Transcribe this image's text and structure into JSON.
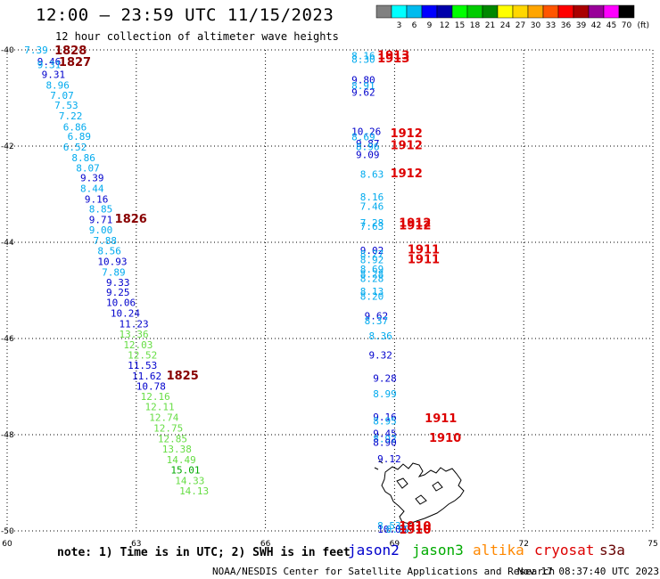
{
  "title": "12:00 – 23:59 UTC 11/15/2023",
  "subtitle": "12 hour collection of altimeter wave heights",
  "note": "note: 1) Time is in UTC; 2) SWH is in feet",
  "satellites": [
    {
      "name": "jason2",
      "color": "#0000cc"
    },
    {
      "name": "jason3",
      "color": "#00aa00"
    },
    {
      "name": "altika",
      "color": "#ff8800"
    },
    {
      "name": "cryosat",
      "color": "#dd0000"
    },
    {
      "name": "s3a",
      "color": "#660000"
    }
  ],
  "credit": "NOAA/NESDIS Center for Satellite Applications and Research",
  "generated": "Nov 17 08:37:40 UTC 2023",
  "chart_data": {
    "type": "scatter",
    "title": "12:00 – 23:59 UTC 11/15/2023",
    "subtitle": "12 hour collection of altimeter wave heights",
    "units": "ft",
    "xlim": [
      60,
      75
    ],
    "ylim": [
      -50,
      -40
    ],
    "x_ticks": [
      60,
      63,
      66,
      69,
      72,
      75
    ],
    "y_ticks": [
      -40,
      -42,
      -44,
      -46,
      -48,
      -50
    ],
    "grid": true,
    "colorbar": {
      "levels": [
        "",
        "3",
        "6",
        "9",
        "12",
        "15",
        "18",
        "21",
        "24",
        "27",
        "30",
        "33",
        "36",
        "39",
        "42",
        "45",
        "70"
      ],
      "colors": [
        "#808080",
        "#00ffff",
        "#00bbee",
        "#0000ff",
        "#0000aa",
        "#00ff00",
        "#00cc00",
        "#008800",
        "#ffff00",
        "#ffd700",
        "#ffa500",
        "#ff5500",
        "#ff0000",
        "#aa0000",
        "#990099",
        "#ff00ff",
        "#000000"
      ],
      "unit_label": "(ft)"
    },
    "track_west": [
      {
        "lon": 60.4,
        "lat": -40.0,
        "v": "7.39",
        "c": "#00aaee"
      },
      {
        "lon": 60.7,
        "lat": -40.24,
        "v": "9.46",
        "c": "#0000cc"
      },
      {
        "lon": 60.7,
        "lat": -40.31,
        "v": "9.31",
        "c": "#00aaee"
      },
      {
        "lon": 60.8,
        "lat": -40.51,
        "v": "9.31",
        "c": "#0000cc"
      },
      {
        "lon": 60.9,
        "lat": -40.73,
        "v": "8.96",
        "c": "#00aaee"
      },
      {
        "lon": 61.0,
        "lat": -40.94,
        "v": "7.07",
        "c": "#00aaee"
      },
      {
        "lon": 61.1,
        "lat": -41.15,
        "v": "7.53",
        "c": "#00aaee"
      },
      {
        "lon": 61.2,
        "lat": -41.37,
        "v": "7.22",
        "c": "#00aaee"
      },
      {
        "lon": 61.3,
        "lat": -41.6,
        "v": "6.86",
        "c": "#00aaee"
      },
      {
        "lon": 61.4,
        "lat": -41.8,
        "v": "6.89",
        "c": "#00aaee"
      },
      {
        "lon": 61.3,
        "lat": -42.02,
        "v": "6.52",
        "c": "#00aaee"
      },
      {
        "lon": 61.5,
        "lat": -42.24,
        "v": "8.86",
        "c": "#00aaee"
      },
      {
        "lon": 61.6,
        "lat": -42.45,
        "v": "8.07",
        "c": "#00aaee"
      },
      {
        "lon": 61.7,
        "lat": -42.66,
        "v": "9.39",
        "c": "#0000cc"
      },
      {
        "lon": 61.7,
        "lat": -42.88,
        "v": "8.44",
        "c": "#00aaee"
      },
      {
        "lon": 61.8,
        "lat": -43.1,
        "v": "9.16",
        "c": "#0000cc"
      },
      {
        "lon": 61.9,
        "lat": -43.31,
        "v": "8.85",
        "c": "#00aaee"
      },
      {
        "lon": 61.9,
        "lat": -43.53,
        "v": "9.71",
        "c": "#0000cc"
      },
      {
        "lon": 61.9,
        "lat": -43.74,
        "v": "9.00",
        "c": "#00aaee"
      },
      {
        "lon": 62.0,
        "lat": -43.96,
        "v": "7.88",
        "c": "#00aaee"
      },
      {
        "lon": 62.1,
        "lat": -44.18,
        "v": "8.56",
        "c": "#00aaee"
      },
      {
        "lon": 62.1,
        "lat": -44.4,
        "v": "10.93",
        "c": "#0000cc"
      },
      {
        "lon": 62.2,
        "lat": -44.62,
        "v": "7.89",
        "c": "#00aaee"
      },
      {
        "lon": 62.3,
        "lat": -44.83,
        "v": "9.33",
        "c": "#0000cc"
      },
      {
        "lon": 62.3,
        "lat": -45.04,
        "v": "9.25",
        "c": "#0000cc"
      },
      {
        "lon": 62.3,
        "lat": -45.25,
        "v": "10.06",
        "c": "#0000cc"
      },
      {
        "lon": 62.4,
        "lat": -45.47,
        "v": "10.24",
        "c": "#0000cc"
      },
      {
        "lon": 62.6,
        "lat": -45.69,
        "v": "11.23",
        "c": "#0000cc"
      },
      {
        "lon": 62.6,
        "lat": -45.91,
        "v": "13.36",
        "c": "#66dd44"
      },
      {
        "lon": 62.7,
        "lat": -46.13,
        "v": "12.03",
        "c": "#66dd44"
      },
      {
        "lon": 62.8,
        "lat": -46.34,
        "v": "12.52",
        "c": "#66dd44"
      },
      {
        "lon": 62.8,
        "lat": -46.56,
        "v": "11.53",
        "c": "#0000cc"
      },
      {
        "lon": 62.9,
        "lat": -46.78,
        "v": "11.62",
        "c": "#0000cc"
      },
      {
        "lon": 63.0,
        "lat": -46.99,
        "v": "10.78",
        "c": "#0000cc"
      },
      {
        "lon": 63.1,
        "lat": -47.2,
        "v": "12.16",
        "c": "#66dd44"
      },
      {
        "lon": 63.2,
        "lat": -47.42,
        "v": "12.11",
        "c": "#66dd44"
      },
      {
        "lon": 63.3,
        "lat": -47.64,
        "v": "12.74",
        "c": "#66dd44"
      },
      {
        "lon": 63.4,
        "lat": -47.86,
        "v": "12.75",
        "c": "#66dd44"
      },
      {
        "lon": 63.5,
        "lat": -48.08,
        "v": "12.85",
        "c": "#66dd44"
      },
      {
        "lon": 63.6,
        "lat": -48.3,
        "v": "13.38",
        "c": "#66dd44"
      },
      {
        "lon": 63.7,
        "lat": -48.52,
        "v": "14.49",
        "c": "#66dd44"
      },
      {
        "lon": 63.8,
        "lat": -48.73,
        "v": "15.01",
        "c": "#00aa00"
      },
      {
        "lon": 63.9,
        "lat": -48.95,
        "v": "14.33",
        "c": "#66dd44"
      },
      {
        "lon": 64.0,
        "lat": -49.17,
        "v": "14.13",
        "c": "#66dd44"
      }
    ],
    "track_east": [
      {
        "lon": 68.0,
        "lat": -40.12,
        "v": "8.16",
        "c": "#00aaee"
      },
      {
        "lon": 68.0,
        "lat": -40.19,
        "v": "8.30",
        "c": "#00aaee"
      },
      {
        "lon": 68.0,
        "lat": -40.62,
        "v": "9.80",
        "c": "#0000cc"
      },
      {
        "lon": 68.0,
        "lat": -40.74,
        "v": "8.91",
        "c": "#00aaee"
      },
      {
        "lon": 68.0,
        "lat": -40.88,
        "v": "9.62",
        "c": "#0000cc"
      },
      {
        "lon": 68.0,
        "lat": -41.69,
        "v": "10.26",
        "c": "#0000cc"
      },
      {
        "lon": 68.0,
        "lat": -41.81,
        "v": "8.69",
        "c": "#00aaee"
      },
      {
        "lon": 68.1,
        "lat": -41.94,
        "v": "9.87",
        "c": "#0000cc"
      },
      {
        "lon": 68.1,
        "lat": -42.01,
        "v": "8.96",
        "c": "#00aaee"
      },
      {
        "lon": 68.1,
        "lat": -42.18,
        "v": "9.09",
        "c": "#0000cc"
      },
      {
        "lon": 68.2,
        "lat": -42.58,
        "v": "8.63",
        "c": "#00aaee"
      },
      {
        "lon": 68.2,
        "lat": -43.06,
        "v": "8.16",
        "c": "#00aaee"
      },
      {
        "lon": 68.2,
        "lat": -43.25,
        "v": "7.46",
        "c": "#00aaee"
      },
      {
        "lon": 68.2,
        "lat": -43.59,
        "v": "7.28",
        "c": "#00aaee"
      },
      {
        "lon": 68.2,
        "lat": -43.67,
        "v": "7.63",
        "c": "#00aaee"
      },
      {
        "lon": 68.2,
        "lat": -44.17,
        "v": "9.02",
        "c": "#0000cc"
      },
      {
        "lon": 68.2,
        "lat": -44.24,
        "v": "8.27",
        "c": "#00aaee"
      },
      {
        "lon": 68.2,
        "lat": -44.36,
        "v": "8.92",
        "c": "#00aaee"
      },
      {
        "lon": 68.2,
        "lat": -44.56,
        "v": "8.69",
        "c": "#00aaee"
      },
      {
        "lon": 68.2,
        "lat": -44.66,
        "v": "8.28",
        "c": "#00aaee"
      },
      {
        "lon": 68.2,
        "lat": -44.75,
        "v": "8.28",
        "c": "#00aaee"
      },
      {
        "lon": 68.2,
        "lat": -45.02,
        "v": "8.13",
        "c": "#00aaee"
      },
      {
        "lon": 68.2,
        "lat": -45.12,
        "v": "8.20",
        "c": "#00aaee"
      },
      {
        "lon": 68.3,
        "lat": -45.53,
        "v": "9.62",
        "c": "#0000cc"
      },
      {
        "lon": 68.3,
        "lat": -45.63,
        "v": "8.37",
        "c": "#00aaee"
      },
      {
        "lon": 68.4,
        "lat": -45.94,
        "v": "8.36",
        "c": "#00aaee"
      },
      {
        "lon": 68.4,
        "lat": -46.34,
        "v": "9.32",
        "c": "#0000cc"
      },
      {
        "lon": 68.5,
        "lat": -46.82,
        "v": "9.28",
        "c": "#0000cc"
      },
      {
        "lon": 68.5,
        "lat": -47.15,
        "v": "8.99",
        "c": "#00aaee"
      },
      {
        "lon": 68.5,
        "lat": -47.63,
        "v": "9.16",
        "c": "#0000cc"
      },
      {
        "lon": 68.5,
        "lat": -47.71,
        "v": "8.95",
        "c": "#00aaee"
      },
      {
        "lon": 68.5,
        "lat": -47.97,
        "v": "9.45",
        "c": "#0000cc"
      },
      {
        "lon": 68.5,
        "lat": -48.08,
        "v": "8.92",
        "c": "#00aaee"
      },
      {
        "lon": 68.5,
        "lat": -48.16,
        "v": "8.90",
        "c": "#0000cc"
      },
      {
        "lon": 68.6,
        "lat": -48.5,
        "v": "9.12",
        "c": "#0000cc"
      },
      {
        "lon": 68.6,
        "lat": -49.89,
        "v": "8.53",
        "c": "#00aaee"
      },
      {
        "lon": 68.6,
        "lat": -49.96,
        "v": "10.09",
        "c": "#0000cc"
      },
      {
        "lon": 68.8,
        "lat": -49.96,
        "v": "8.99",
        "c": "#00aaee"
      }
    ],
    "time_labels": [
      {
        "lon": 61.1,
        "lat": -40.0,
        "t": "1828",
        "c": "#880000"
      },
      {
        "lon": 61.2,
        "lat": -40.24,
        "t": "1827",
        "c": "#880000"
      },
      {
        "lon": 62.5,
        "lat": -43.5,
        "t": "1826",
        "c": "#880000"
      },
      {
        "lon": 63.7,
        "lat": -46.76,
        "t": "1825",
        "c": "#880000"
      },
      {
        "lon": 68.6,
        "lat": -40.1,
        "t": "1913",
        "c": "#dd0000"
      },
      {
        "lon": 68.6,
        "lat": -40.17,
        "t": "1913",
        "c": "#dd0000"
      },
      {
        "lon": 68.9,
        "lat": -41.72,
        "t": "1912",
        "c": "#dd0000"
      },
      {
        "lon": 68.9,
        "lat": -41.97,
        "t": "1912",
        "c": "#dd0000"
      },
      {
        "lon": 68.9,
        "lat": -42.56,
        "t": "1912",
        "c": "#dd0000"
      },
      {
        "lon": 69.1,
        "lat": -43.58,
        "t": "1912",
        "c": "#dd0000"
      },
      {
        "lon": 69.1,
        "lat": -43.64,
        "t": "1912",
        "c": "#dd0000"
      },
      {
        "lon": 69.3,
        "lat": -44.14,
        "t": "1911",
        "c": "#dd0000"
      },
      {
        "lon": 69.3,
        "lat": -44.34,
        "t": "1911",
        "c": "#dd0000"
      },
      {
        "lon": 69.7,
        "lat": -47.65,
        "t": "1911",
        "c": "#dd0000"
      },
      {
        "lon": 69.8,
        "lat": -48.06,
        "t": "1910",
        "c": "#dd0000"
      },
      {
        "lon": 69.1,
        "lat": -49.89,
        "t": "1910",
        "c": "#dd0000"
      },
      {
        "lon": 69.1,
        "lat": -49.96,
        "t": "1910",
        "c": "#dd0000"
      }
    ]
  }
}
